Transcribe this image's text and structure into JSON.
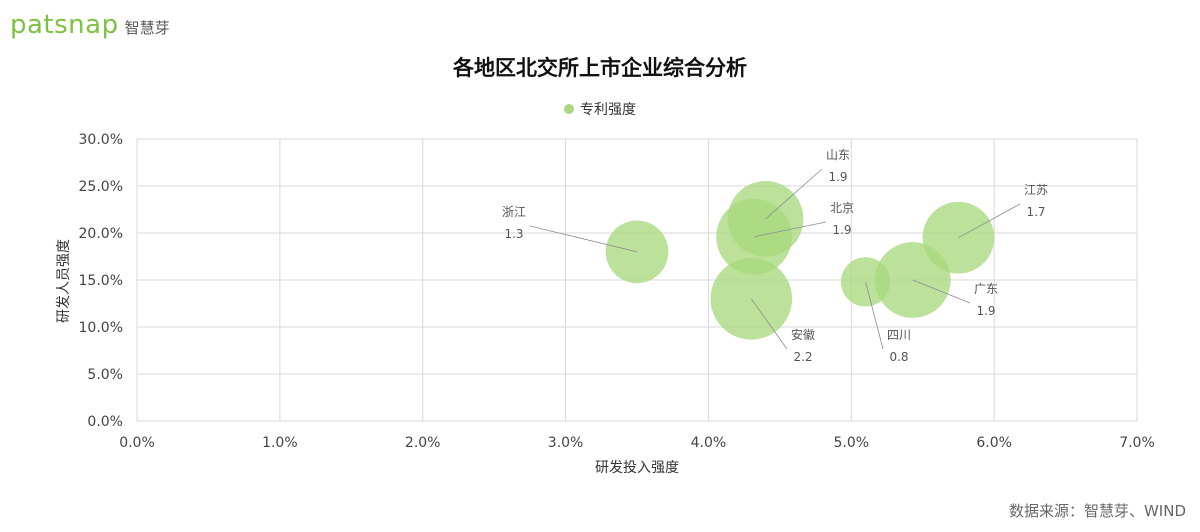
{
  "brand": {
    "logo_text": "patsnap",
    "logo_sub": "智慧芽"
  },
  "source": "数据来源：智慧芽、WIND",
  "colors": {
    "bubble": "#a9d87e",
    "grid": "#d9d9d9",
    "leader": "#8c8c8c"
  },
  "chart_data": {
    "type": "scatter",
    "bubble": true,
    "title": "各地区北交所上市企业综合分析",
    "xlabel": "研发投入强度",
    "ylabel": "研发人员强度",
    "xlim": [
      0,
      0.07
    ],
    "ylim": [
      0,
      0.3
    ],
    "x_ticks": [
      "0.0%",
      "1.0%",
      "2.0%",
      "3.0%",
      "4.0%",
      "5.0%",
      "6.0%",
      "7.0%"
    ],
    "y_ticks": [
      "0.0%",
      "5.0%",
      "10.0%",
      "15.0%",
      "20.0%",
      "25.0%",
      "30.0%"
    ],
    "grid": true,
    "legend_position": "top-center",
    "series": [
      {
        "name": "专利强度",
        "points": [
          {
            "label": "浙江",
            "x": 0.035,
            "y": 0.18,
            "size": 1.3
          },
          {
            "label": "山东",
            "x": 0.044,
            "y": 0.215,
            "size": 1.9
          },
          {
            "label": "北京",
            "x": 0.0432,
            "y": 0.196,
            "size": 1.9
          },
          {
            "label": "安徽",
            "x": 0.043,
            "y": 0.13,
            "size": 2.2
          },
          {
            "label": "四川",
            "x": 0.051,
            "y": 0.148,
            "size": 0.8
          },
          {
            "label": "广东",
            "x": 0.0543,
            "y": 0.15,
            "size": 1.9
          },
          {
            "label": "江苏",
            "x": 0.0575,
            "y": 0.195,
            "size": 1.7
          }
        ]
      }
    ]
  }
}
